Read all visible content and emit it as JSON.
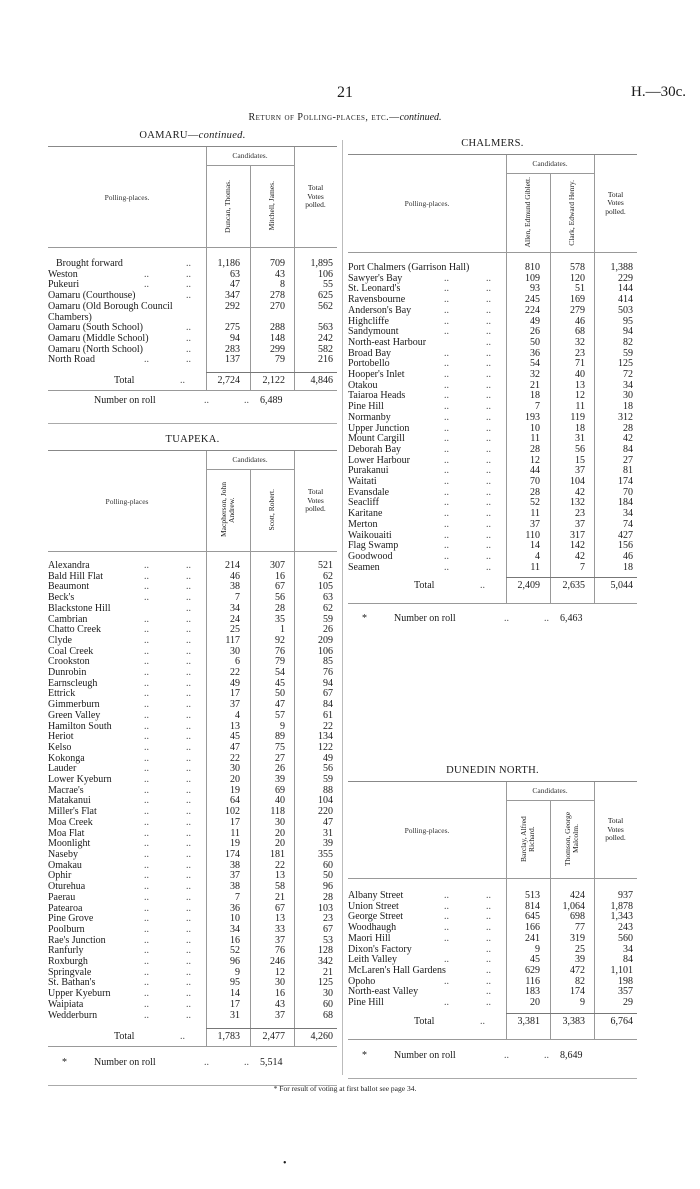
{
  "page_number": "21",
  "doc_ref": "H.—30c.",
  "running_title": {
    "main": "Return of Polling-places, etc.—",
    "suffix": "continued."
  },
  "leader": "..",
  "sections": [
    {
      "title": "OAMARU—",
      "title_suffix": "continued.",
      "polling_places_label": "Polling-places.",
      "candidates_label": "Candidates.",
      "total_votes_label": "Total\nVotes\npolled.",
      "candidates": [
        "Duncan, Thomas.",
        "Mitchell, James."
      ],
      "rows": [
        [
          "Brought forward",
          "1,186",
          "709",
          "1,895"
        ],
        [
          "Weston",
          "63",
          "43",
          "106"
        ],
        [
          "Pukeuri",
          "47",
          "8",
          "55"
        ],
        [
          "Oamaru (Courthouse)",
          "347",
          "278",
          "625"
        ],
        [
          "Oamaru (Old Borough Council Chambers)",
          "292",
          "270",
          "562"
        ],
        [
          "Oamaru (South School)",
          "275",
          "288",
          "563"
        ],
        [
          "Oamaru (Middle School)",
          "94",
          "148",
          "242"
        ],
        [
          "Oamaru (North School)",
          "283",
          "299",
          "582"
        ],
        [
          "North Road",
          "137",
          "79",
          "216"
        ]
      ],
      "total": [
        "Total",
        "2,724",
        "2,122",
        "4,846"
      ],
      "roll": {
        "marker": "",
        "label": "Number on roll",
        "value": "6,489"
      }
    },
    {
      "title": "TUAPEKA.",
      "title_suffix": "",
      "polling_places_label": "Polling-places",
      "candidates_label": "Candidates.",
      "total_votes_label": "Total\nVotes\npolled.",
      "candidates": [
        "Macpherson, John Andrew.",
        "Scott, Robert."
      ],
      "rows": [
        [
          "Alexandra",
          "214",
          "307",
          "521"
        ],
        [
          "Bald Hill Flat",
          "46",
          "16",
          "62"
        ],
        [
          "Beaumont",
          "38",
          "67",
          "105"
        ],
        [
          "Beck's",
          "7",
          "56",
          "63"
        ],
        [
          "Blackstone Hill",
          "34",
          "28",
          "62"
        ],
        [
          "Cambrian",
          "24",
          "35",
          "59"
        ],
        [
          "Chatto Creek",
          "25",
          "1",
          "26"
        ],
        [
          "Clyde",
          "117",
          "92",
          "209"
        ],
        [
          "Coal Creek",
          "30",
          "76",
          "106"
        ],
        [
          "Crookston",
          "6",
          "79",
          "85"
        ],
        [
          "Dunrobin",
          "22",
          "54",
          "76"
        ],
        [
          "Earnscleugh",
          "49",
          "45",
          "94"
        ],
        [
          "Ettrick",
          "17",
          "50",
          "67"
        ],
        [
          "Gimmerburn",
          "37",
          "47",
          "84"
        ],
        [
          "Green Valley",
          "4",
          "57",
          "61"
        ],
        [
          "Hamilton South",
          "13",
          "9",
          "22"
        ],
        [
          "Heriot",
          "45",
          "89",
          "134"
        ],
        [
          "Kelso",
          "47",
          "75",
          "122"
        ],
        [
          "Kokonga",
          "22",
          "27",
          "49"
        ],
        [
          "Lauder",
          "30",
          "26",
          "56"
        ],
        [
          "Lower Kyeburn",
          "20",
          "39",
          "59"
        ],
        [
          "Macrae's",
          "19",
          "69",
          "88"
        ],
        [
          "Matakanui",
          "64",
          "40",
          "104"
        ],
        [
          "Miller's Flat",
          "102",
          "118",
          "220"
        ],
        [
          "Moa Creek",
          "17",
          "30",
          "47"
        ],
        [
          "Moa Flat",
          "11",
          "20",
          "31"
        ],
        [
          "Moonlight",
          "19",
          "20",
          "39"
        ],
        [
          "Naseby",
          "174",
          "181",
          "355"
        ],
        [
          "Omakau",
          "38",
          "22",
          "60"
        ],
        [
          "Ophir",
          "37",
          "13",
          "50"
        ],
        [
          "Oturehua",
          "38",
          "58",
          "96"
        ],
        [
          "Paerau",
          "7",
          "21",
          "28"
        ],
        [
          "Patearoa",
          "36",
          "67",
          "103"
        ],
        [
          "Pine Grove",
          "10",
          "13",
          "23"
        ],
        [
          "Poolburn",
          "34",
          "33",
          "67"
        ],
        [
          "Rae's Junction",
          "16",
          "37",
          "53"
        ],
        [
          "Ranfurly",
          "52",
          "76",
          "128"
        ],
        [
          "Roxburgh",
          "96",
          "246",
          "342"
        ],
        [
          "Springvale",
          "9",
          "12",
          "21"
        ],
        [
          "St. Bathan's",
          "95",
          "30",
          "125"
        ],
        [
          "Upper Kyeburn",
          "14",
          "16",
          "30"
        ],
        [
          "Waipiata",
          "17",
          "43",
          "60"
        ],
        [
          "Wedderburn",
          "31",
          "37",
          "68"
        ]
      ],
      "total": [
        "Total",
        "1,783",
        "2,477",
        "4,260"
      ],
      "roll": {
        "marker": "*",
        "label": "Number on roll",
        "value": "5,514"
      }
    },
    {
      "title": "CHALMERS.",
      "title_suffix": "",
      "polling_places_label": "Polling-places.",
      "candidates_label": "Candidates.",
      "total_votes_label": "Total\nVotes\npolled.",
      "candidates": [
        "Allen, Edmund Giblett.",
        "Clark, Edward Henry."
      ],
      "rows": [
        [
          "Port Chalmers (Garrison Hall)",
          "810",
          "578",
          "1,388"
        ],
        [
          "Sawyer's Bay",
          "109",
          "120",
          "229"
        ],
        [
          "St. Leonard's",
          "93",
          "51",
          "144"
        ],
        [
          "Ravensbourne",
          "245",
          "169",
          "414"
        ],
        [
          "Anderson's Bay",
          "224",
          "279",
          "503"
        ],
        [
          "Highcliffe",
          "49",
          "46",
          "95"
        ],
        [
          "Sandymount",
          "26",
          "68",
          "94"
        ],
        [
          "North-east Harbour",
          "50",
          "32",
          "82"
        ],
        [
          "Broad Bay",
          "36",
          "23",
          "59"
        ],
        [
          "Portobello",
          "54",
          "71",
          "125"
        ],
        [
          "Hooper's Inlet",
          "32",
          "40",
          "72"
        ],
        [
          "Otakou",
          "21",
          "13",
          "34"
        ],
        [
          "Taiaroa Heads",
          "18",
          "12",
          "30"
        ],
        [
          "Pine Hill",
          "7",
          "11",
          "18"
        ],
        [
          "Normanby",
          "193",
          "119",
          "312"
        ],
        [
          "Upper Junction",
          "10",
          "18",
          "28"
        ],
        [
          "Mount Cargill",
          "11",
          "31",
          "42"
        ],
        [
          "Deborah Bay",
          "28",
          "56",
          "84"
        ],
        [
          "Lower Harbour",
          "12",
          "15",
          "27"
        ],
        [
          "Purakanui",
          "44",
          "37",
          "81"
        ],
        [
          "Waitati",
          "70",
          "104",
          "174"
        ],
        [
          "Evansdale",
          "28",
          "42",
          "70"
        ],
        [
          "Seacliff",
          "52",
          "132",
          "184"
        ],
        [
          "Karitane",
          "11",
          "23",
          "34"
        ],
        [
          "Merton",
          "37",
          "37",
          "74"
        ],
        [
          "Waikouaiti",
          "110",
          "317",
          "427"
        ],
        [
          "Flag Swamp",
          "14",
          "142",
          "156"
        ],
        [
          "Goodwood",
          "4",
          "42",
          "46"
        ],
        [
          "Seamen",
          "11",
          "7",
          "18"
        ]
      ],
      "total": [
        "Total",
        "2,409",
        "2,635",
        "5,044"
      ],
      "roll": {
        "marker": "*",
        "label": "Number on roll",
        "value": "6,463"
      }
    },
    {
      "title": "DUNEDIN NORTH.",
      "title_suffix": "",
      "polling_places_label": "Polling-places.",
      "candidates_label": "Candidates.",
      "total_votes_label": "Total\nVotes\npolled.",
      "candidates": [
        "Barclay, Alfred Richard.",
        "Thomson, George Malcolm."
      ],
      "rows": [
        [
          "Albany Street",
          "513",
          "424",
          "937"
        ],
        [
          "Union Street",
          "814",
          "1,064",
          "1,878"
        ],
        [
          "George Street",
          "645",
          "698",
          "1,343"
        ],
        [
          "Woodhaugh",
          "166",
          "77",
          "243"
        ],
        [
          "Maori Hill",
          "241",
          "319",
          "560"
        ],
        [
          "Dixon's Factory",
          "9",
          "25",
          "34"
        ],
        [
          "Leith Valley",
          "45",
          "39",
          "84"
        ],
        [
          "McLaren's Hall Gardens",
          "629",
          "472",
          "1,101"
        ],
        [
          "Opoho",
          "116",
          "82",
          "198"
        ],
        [
          "North-east Valley",
          "183",
          "174",
          "357"
        ],
        [
          "Pine Hill",
          "20",
          "9",
          "29"
        ]
      ],
      "total": [
        "Total",
        "3,381",
        "3,383",
        "6,764"
      ],
      "roll": {
        "marker": "*",
        "label": "Number on roll",
        "value": "8,649"
      }
    }
  ],
  "footnote": "* For result of voting at first ballot see page 34.",
  "bottom_mark": "•"
}
